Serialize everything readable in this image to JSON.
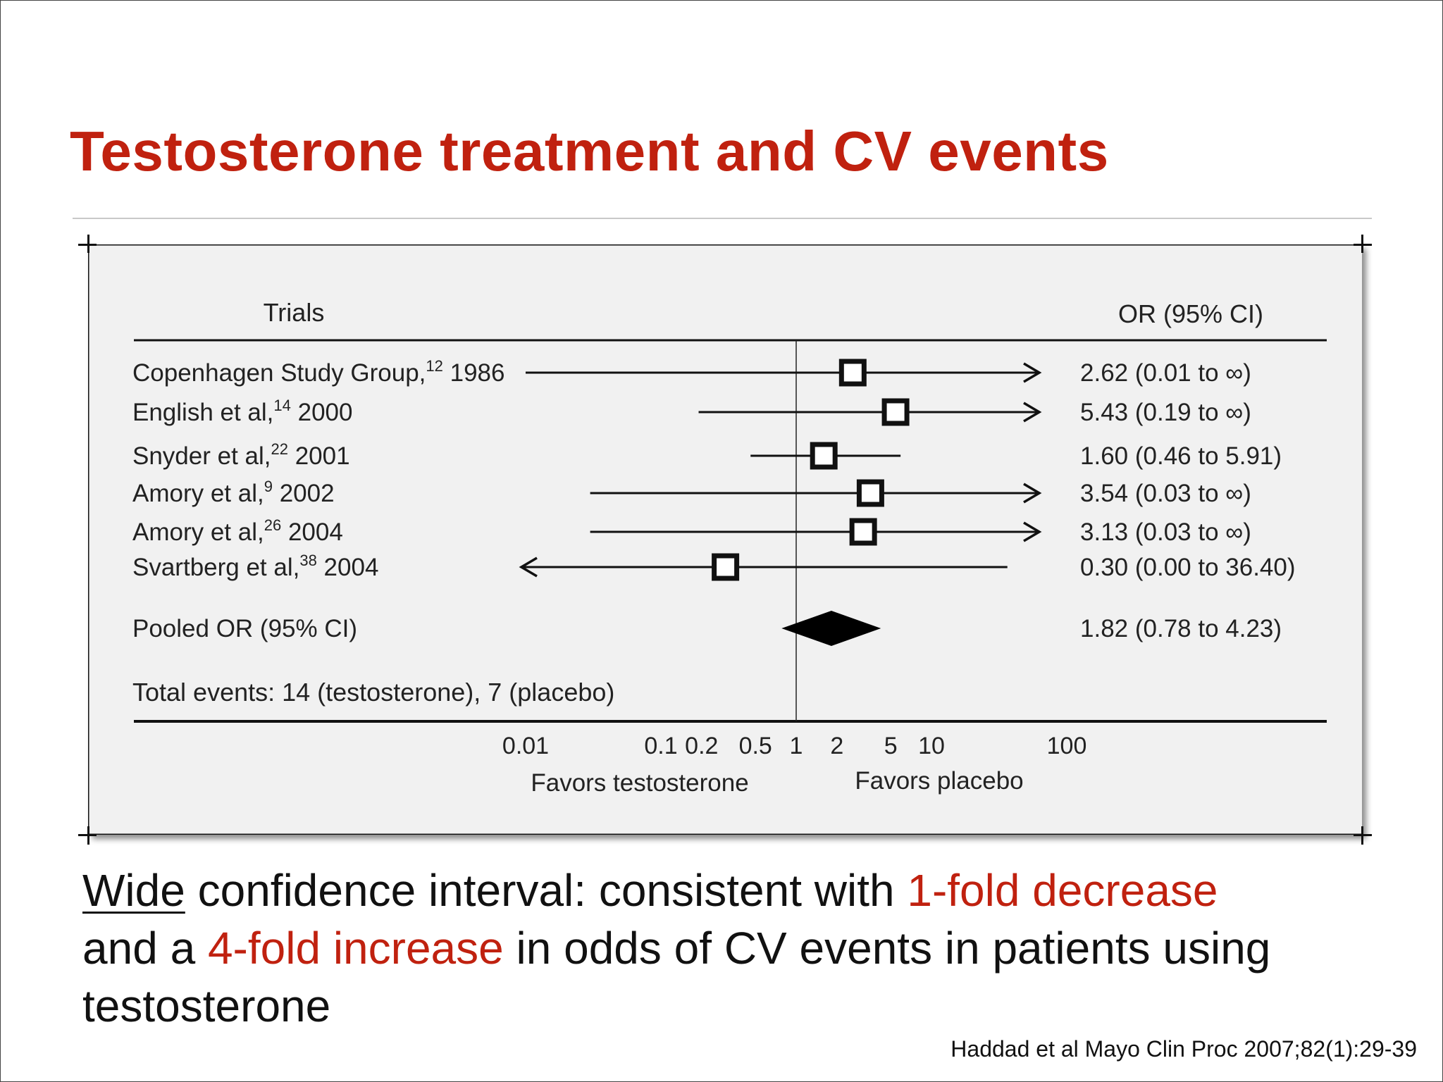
{
  "slide": {
    "title": "Testosterone treatment and CV events",
    "caption": {
      "underlined": "Wide",
      "part1": " confidence interval: consistent with ",
      "red1": "1-fold decrease",
      "part2": " and a ",
      "red2": "4-fold increase",
      "part3": " in odds of CV events in patients using testosterone"
    },
    "citation": "Haddad et al Mayo Clin Proc 2007;82(1):29-39"
  },
  "colors": {
    "accent_red": "#c0210f",
    "figure_bg": "#f1f1f1",
    "ink": "#111111"
  },
  "chart_data": {
    "type": "forest",
    "col_left": "Trials",
    "col_right": "OR (95% CI)",
    "x_scale": "log",
    "xlim": [
      0.001,
      1000
    ],
    "x_ticks": [
      {
        "value": 0.01,
        "label": "0.01"
      },
      {
        "value": 0.1,
        "label": "0.1"
      },
      {
        "value": 0.2,
        "label": "0.2"
      },
      {
        "value": 0.5,
        "label": "0.5"
      },
      {
        "value": 1,
        "label": "1"
      },
      {
        "value": 2,
        "label": "2"
      },
      {
        "value": 5,
        "label": "5"
      },
      {
        "value": 10,
        "label": "10"
      },
      {
        "value": 100,
        "label": "100"
      }
    ],
    "x_label_left": "Favors testosterone",
    "x_label_right": "Favors placebo",
    "reference_line": 1,
    "trials": [
      {
        "name": "Copenhagen Study Group,",
        "ref": "12",
        "year": "1986",
        "or": 2.62,
        "lo": 0.01,
        "hi": "∞",
        "ci_text": "2.62 (0.01 to ∞)"
      },
      {
        "name": "English et al,",
        "ref": "14",
        "year": "2000",
        "or": 5.43,
        "lo": 0.19,
        "hi": "∞",
        "ci_text": "5.43 (0.19 to ∞)"
      },
      {
        "name": "Snyder et al,",
        "ref": "22",
        "year": "2001",
        "or": 1.6,
        "lo": 0.46,
        "hi": 5.91,
        "ci_text": "1.60 (0.46 to 5.91)"
      },
      {
        "name": "Amory et al,",
        "ref": "9",
        "year": "2002",
        "or": 3.54,
        "lo": 0.03,
        "hi": "∞",
        "ci_text": "3.54 (0.03 to ∞)"
      },
      {
        "name": "Amory et al,",
        "ref": "26",
        "year": "2004",
        "or": 3.13,
        "lo": 0.03,
        "hi": "∞",
        "ci_text": "3.13 (0.03 to ∞)"
      },
      {
        "name": "Svartberg et al,",
        "ref": "38",
        "year": "2004",
        "or": 0.3,
        "lo": 0.0,
        "hi": 36.4,
        "ci_text": "0.30 (0.00 to 36.40)"
      }
    ],
    "pooled": {
      "label": "Pooled OR (95% CI)",
      "or": 1.82,
      "lo": 0.78,
      "hi": 4.23,
      "ci_text": "1.82 (0.78 to 4.23)"
    },
    "total_events": "Total events: 14 (testosterone), 7 (placebo)"
  }
}
